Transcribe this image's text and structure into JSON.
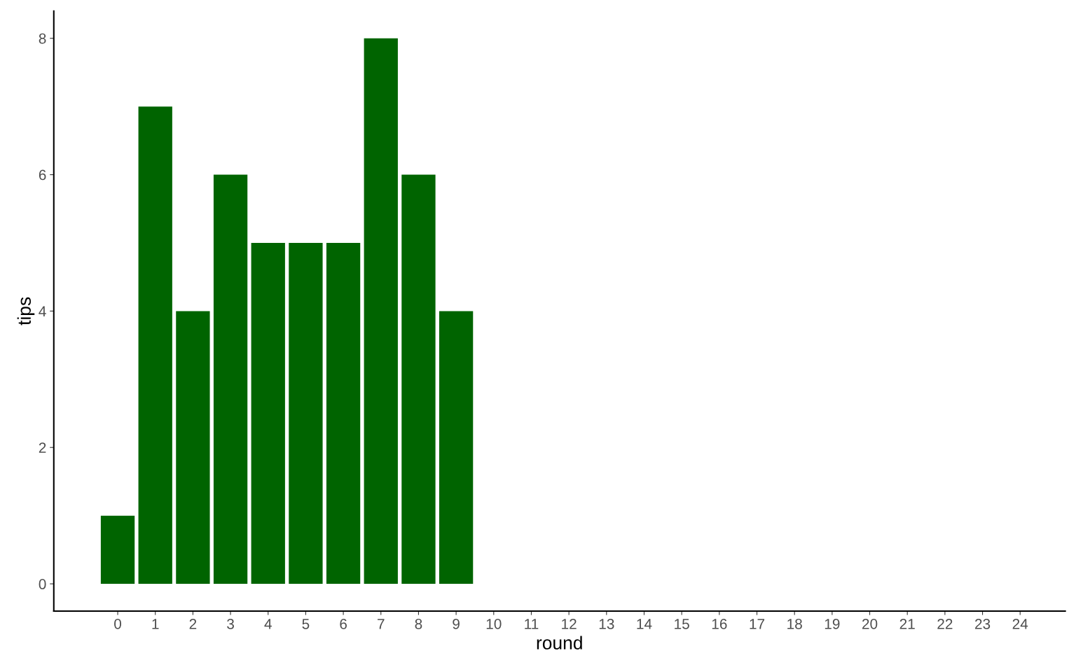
{
  "chart_data": {
    "type": "bar",
    "xlabel": "round",
    "ylabel": "tips",
    "x": [
      0,
      1,
      2,
      3,
      4,
      5,
      6,
      7,
      8,
      9
    ],
    "values": [
      1,
      7,
      4,
      6,
      5,
      5,
      5,
      8,
      6,
      4
    ],
    "color": "#006400",
    "xlim": [
      -1.7,
      25.2
    ],
    "xticks": [
      0,
      1,
      2,
      3,
      4,
      5,
      6,
      7,
      8,
      9,
      10,
      11,
      12,
      13,
      14,
      15,
      16,
      17,
      18,
      19,
      20,
      21,
      22,
      23,
      24
    ],
    "ylim": [
      -0.4,
      8.4
    ],
    "yticks": [
      0,
      2,
      4,
      6,
      8
    ],
    "grid": false
  }
}
